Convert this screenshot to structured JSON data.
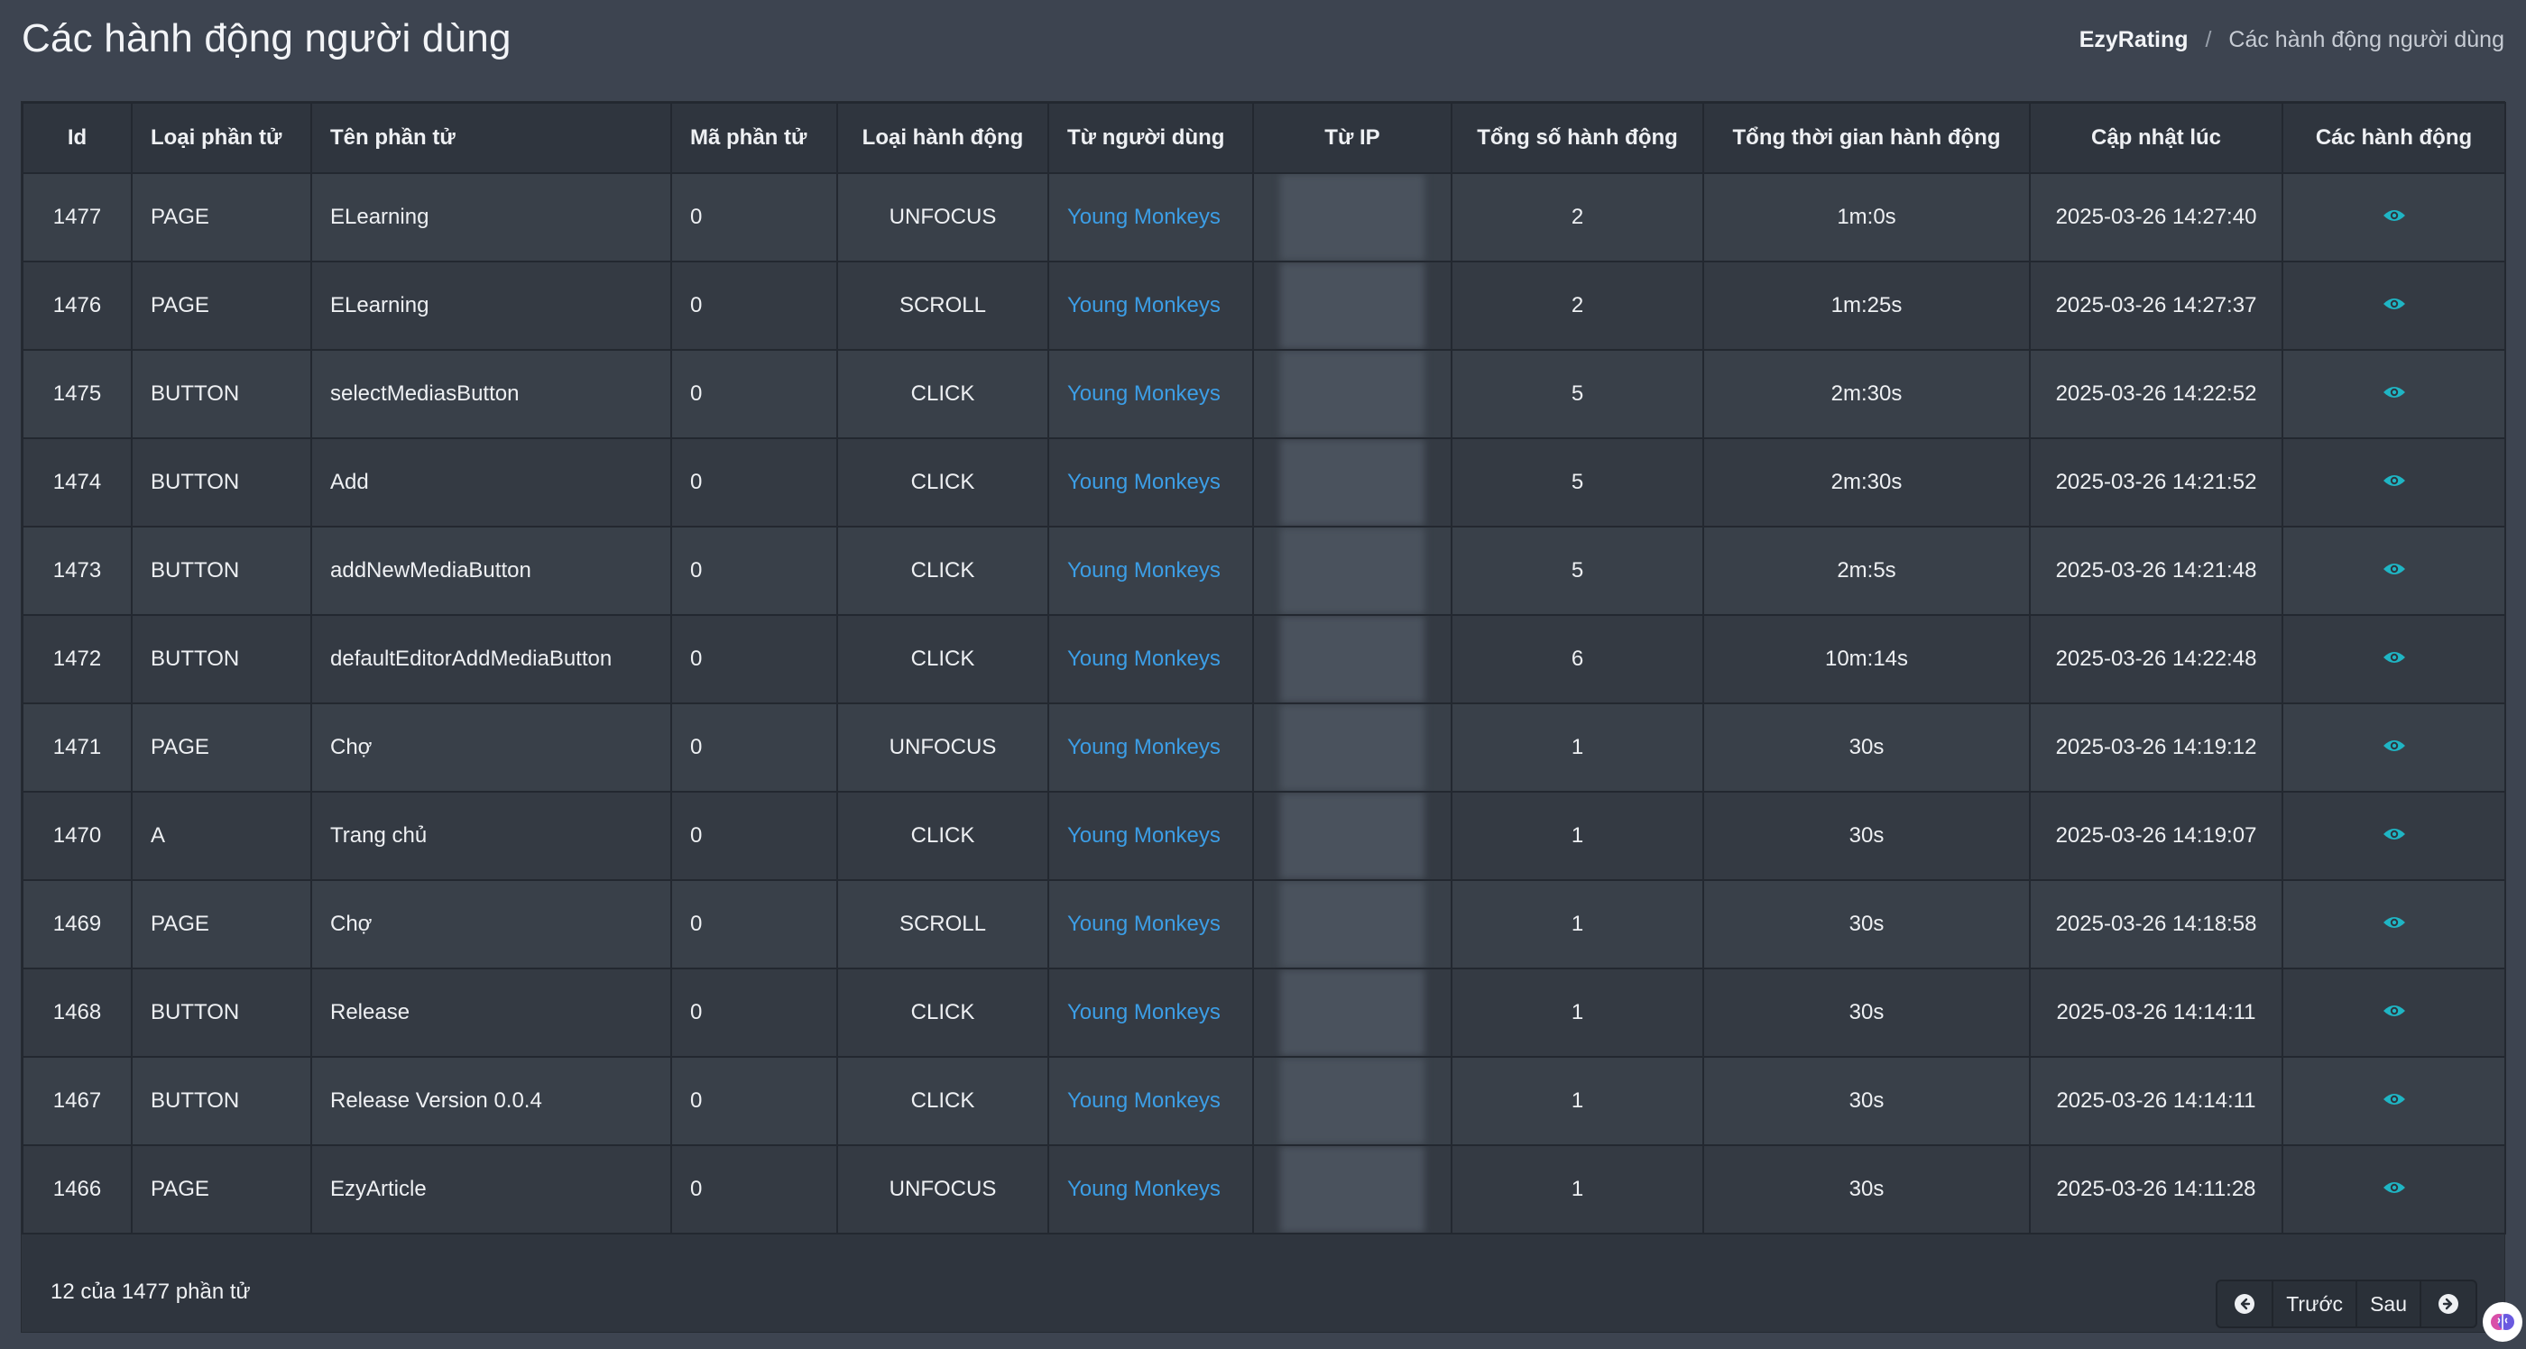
{
  "page": {
    "title": "Các hành động người dùng",
    "breadcrumb": {
      "root": "EzyRating",
      "separator": "/",
      "current": "Các hành động người dùng"
    }
  },
  "table": {
    "headers": {
      "id": "Id",
      "type": "Loại phần tử",
      "name": "Tên phần tử",
      "code": "Mã phần tử",
      "action": "Loại hành động",
      "user": "Từ người dùng",
      "ip": "Từ IP",
      "total": "Tổng số hành động",
      "duration": "Tổng thời gian hành động",
      "updated": "Cập nhật lúc",
      "actions": "Các hành động"
    },
    "rows": [
      {
        "id": "1477",
        "type": "PAGE",
        "name": "ELearning",
        "code": "0",
        "action": "UNFOCUS",
        "user": "Young Monkeys",
        "total": "2",
        "duration": "1m:0s",
        "updated": "2025-03-26 14:27:40"
      },
      {
        "id": "1476",
        "type": "PAGE",
        "name": "ELearning",
        "code": "0",
        "action": "SCROLL",
        "user": "Young Monkeys",
        "total": "2",
        "duration": "1m:25s",
        "updated": "2025-03-26 14:27:37"
      },
      {
        "id": "1475",
        "type": "BUTTON",
        "name": "selectMediasButton",
        "code": "0",
        "action": "CLICK",
        "user": "Young Monkeys",
        "total": "5",
        "duration": "2m:30s",
        "updated": "2025-03-26 14:22:52"
      },
      {
        "id": "1474",
        "type": "BUTTON",
        "name": "Add",
        "code": "0",
        "action": "CLICK",
        "user": "Young Monkeys",
        "total": "5",
        "duration": "2m:30s",
        "updated": "2025-03-26 14:21:52"
      },
      {
        "id": "1473",
        "type": "BUTTON",
        "name": "addNewMediaButton",
        "code": "0",
        "action": "CLICK",
        "user": "Young Monkeys",
        "total": "5",
        "duration": "2m:5s",
        "updated": "2025-03-26 14:21:48"
      },
      {
        "id": "1472",
        "type": "BUTTON",
        "name": "defaultEditorAddMediaButton",
        "code": "0",
        "action": "CLICK",
        "user": "Young Monkeys",
        "total": "6",
        "duration": "10m:14s",
        "updated": "2025-03-26 14:22:48"
      },
      {
        "id": "1471",
        "type": "PAGE",
        "name": "Chợ",
        "code": "0",
        "action": "UNFOCUS",
        "user": "Young Monkeys",
        "total": "1",
        "duration": "30s",
        "updated": "2025-03-26 14:19:12"
      },
      {
        "id": "1470",
        "type": "A",
        "name": "Trang chủ",
        "code": "0",
        "action": "CLICK",
        "user": "Young Monkeys",
        "total": "1",
        "duration": "30s",
        "updated": "2025-03-26 14:19:07"
      },
      {
        "id": "1469",
        "type": "PAGE",
        "name": "Chợ",
        "code": "0",
        "action": "SCROLL",
        "user": "Young Monkeys",
        "total": "1",
        "duration": "30s",
        "updated": "2025-03-26 14:18:58"
      },
      {
        "id": "1468",
        "type": "BUTTON",
        "name": "Release",
        "code": "0",
        "action": "CLICK",
        "user": "Young Monkeys",
        "total": "1",
        "duration": "30s",
        "updated": "2025-03-26 14:14:11"
      },
      {
        "id": "1467",
        "type": "BUTTON",
        "name": "Release Version 0.0.4",
        "code": "0",
        "action": "CLICK",
        "user": "Young Monkeys",
        "total": "1",
        "duration": "30s",
        "updated": "2025-03-26 14:14:11"
      },
      {
        "id": "1466",
        "type": "PAGE",
        "name": "EzyArticle",
        "code": "0",
        "action": "UNFOCUS",
        "user": "Young Monkeys",
        "total": "1",
        "duration": "30s",
        "updated": "2025-03-26 14:11:28"
      }
    ]
  },
  "footer": {
    "count_text": "12 của 1477 phần tử",
    "prev_label": "Trước",
    "next_label": "Sau"
  },
  "colors": {
    "link": "#3c9ee6",
    "eye_icon": "#1fb5c4",
    "background": "#3d4450"
  }
}
